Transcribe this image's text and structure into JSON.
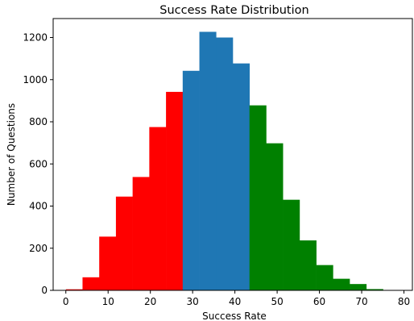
{
  "chart_data": {
    "type": "bar",
    "title": "Success Rate Distribution",
    "xlabel": "Success Rate",
    "ylabel": "Number of Questions",
    "xlim": [
      -3,
      82
    ],
    "ylim": [
      0,
      1290
    ],
    "xticks": [
      0,
      10,
      20,
      30,
      40,
      50,
      60,
      70,
      80
    ],
    "yticks": [
      0,
      200,
      400,
      600,
      800,
      1000,
      1200
    ],
    "grid": false,
    "legend": "none",
    "bin_width": 3.95,
    "bins": [
      {
        "x_start": 0.0,
        "x_end": 3.95,
        "value": 5,
        "color": "#ff0000"
      },
      {
        "x_start": 3.95,
        "x_end": 7.9,
        "value": 62,
        "color": "#ff0000"
      },
      {
        "x_start": 7.9,
        "x_end": 11.85,
        "value": 255,
        "color": "#ff0000"
      },
      {
        "x_start": 11.85,
        "x_end": 15.8,
        "value": 445,
        "color": "#ff0000"
      },
      {
        "x_start": 15.8,
        "x_end": 19.75,
        "value": 538,
        "color": "#ff0000"
      },
      {
        "x_start": 19.75,
        "x_end": 23.7,
        "value": 775,
        "color": "#ff0000"
      },
      {
        "x_start": 23.7,
        "x_end": 27.65,
        "value": 942,
        "color": "#ff0000"
      },
      {
        "x_start": 27.65,
        "x_end": 31.6,
        "value": 1042,
        "color": "#1f77b4"
      },
      {
        "x_start": 31.6,
        "x_end": 35.55,
        "value": 1227,
        "color": "#1f77b4"
      },
      {
        "x_start": 35.55,
        "x_end": 39.5,
        "value": 1200,
        "color": "#1f77b4"
      },
      {
        "x_start": 39.5,
        "x_end": 43.45,
        "value": 1077,
        "color": "#1f77b4"
      },
      {
        "x_start": 43.45,
        "x_end": 47.4,
        "value": 878,
        "color": "#008000"
      },
      {
        "x_start": 47.4,
        "x_end": 51.35,
        "value": 698,
        "color": "#008000"
      },
      {
        "x_start": 51.35,
        "x_end": 55.3,
        "value": 430,
        "color": "#008000"
      },
      {
        "x_start": 55.3,
        "x_end": 59.25,
        "value": 237,
        "color": "#008000"
      },
      {
        "x_start": 59.25,
        "x_end": 63.2,
        "value": 120,
        "color": "#008000"
      },
      {
        "x_start": 63.2,
        "x_end": 67.15,
        "value": 55,
        "color": "#008000"
      },
      {
        "x_start": 67.15,
        "x_end": 71.1,
        "value": 30,
        "color": "#008000"
      },
      {
        "x_start": 71.1,
        "x_end": 75.05,
        "value": 6,
        "color": "#008000"
      },
      {
        "x_start": 75.05,
        "x_end": 79.0,
        "value": 1,
        "color": "#008000"
      }
    ],
    "colors": {
      "low": "#ff0000",
      "mid": "#1f77b4",
      "high": "#008000"
    }
  }
}
